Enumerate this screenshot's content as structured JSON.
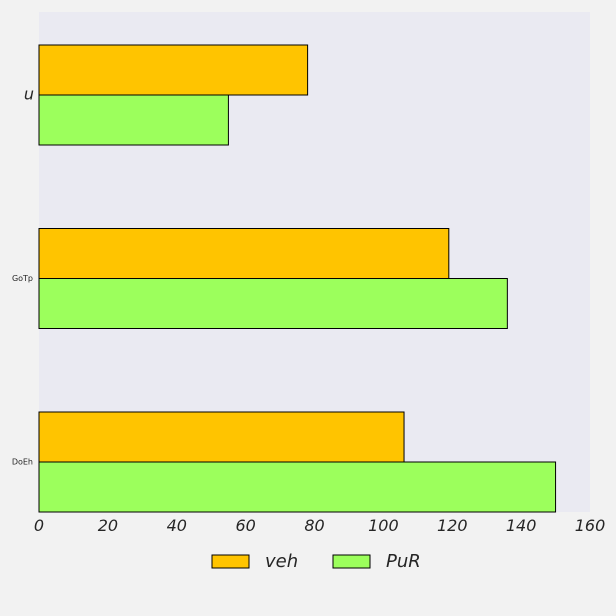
{
  "chart_data": {
    "type": "bar",
    "orientation": "horizontal",
    "categories": [
      "u",
      "GoTp",
      "DoEh"
    ],
    "series": [
      {
        "name": "veh",
        "color": "#ffc400",
        "values": [
          78,
          119,
          106
        ]
      },
      {
        "name": "PuR",
        "color": "#9cff5c",
        "values": [
          55,
          136,
          150
        ]
      }
    ],
    "xlim": [
      0,
      160
    ],
    "x_ticks": [
      0,
      20,
      40,
      60,
      80,
      100,
      120,
      140,
      160
    ],
    "title": "",
    "xlabel": "",
    "ylabel": "",
    "grid": false,
    "legend_position": "bottom-center",
    "plot_background": "#eaeaf2",
    "figure_background": "#f2f2f2"
  }
}
